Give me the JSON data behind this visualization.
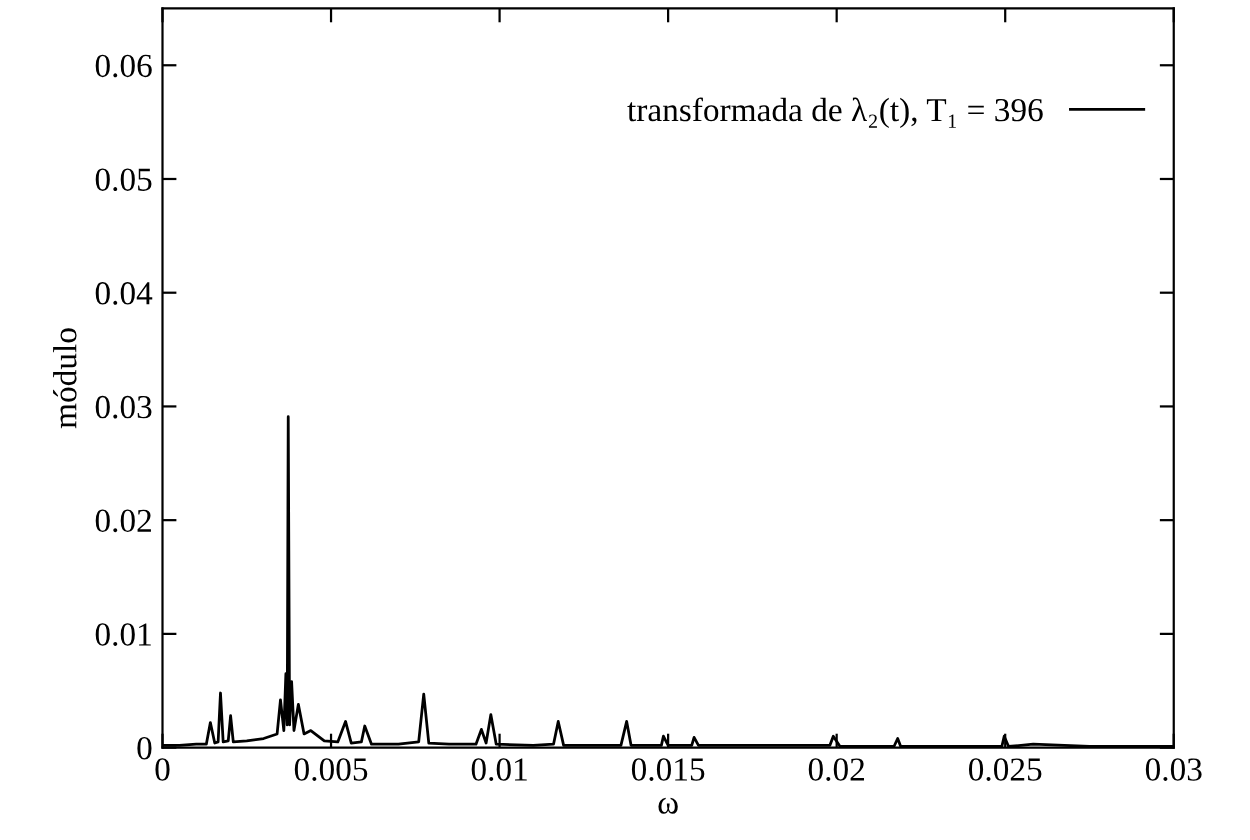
{
  "chart_data": {
    "type": "line",
    "xlabel": "ω",
    "ylabel": "módulo",
    "xlim": [
      0,
      0.03
    ],
    "xticks": [
      0,
      0.005,
      0.01,
      0.015,
      0.02,
      0.025,
      0.03
    ],
    "ylim": [
      0,
      0.065
    ],
    "yticks": [
      0,
      0.01,
      0.02,
      0.03,
      0.04,
      0.05,
      0.06
    ],
    "grid": false,
    "legend": "top right",
    "line_style": "solid",
    "marker": "none",
    "series": [
      {
        "name": "transformada de λ₂(t), T₁ = 396",
        "color": "#000000",
        "x": [
          0,
          0.0005,
          0.001,
          0.0013,
          0.00142,
          0.00155,
          0.00165,
          0.00172,
          0.0018,
          0.00195,
          0.00202,
          0.0021,
          0.0025,
          0.003,
          0.0034,
          0.0035,
          0.0036,
          0.00366,
          0.0037,
          0.00373,
          0.00377,
          0.00383,
          0.0039,
          0.00403,
          0.0042,
          0.0044,
          0.0048,
          0.0052,
          0.00543,
          0.0056,
          0.0059,
          0.006,
          0.0062,
          0.007,
          0.0076,
          0.00775,
          0.0079,
          0.0085,
          0.0093,
          0.00946,
          0.0096,
          0.00974,
          0.0099,
          0.011,
          0.0116,
          0.01174,
          0.0119,
          0.0136,
          0.01377,
          0.0139,
          0.0148,
          0.01486,
          0.015,
          0.0157,
          0.01577,
          0.0159,
          0.0175,
          0.0198,
          0.0199,
          0.0201,
          0.0217,
          0.02181,
          0.0219,
          0.0249,
          0.02497,
          0.0251,
          0.02583,
          0.0275,
          0.03
        ],
        "values": [
          0.0002,
          0.0002,
          0.0003,
          0.0003,
          0.0022,
          0.0004,
          0.0005,
          0.0048,
          0.0005,
          0.0006,
          0.0028,
          0.0005,
          0.0006,
          0.0008,
          0.0012,
          0.0042,
          0.0015,
          0.0065,
          0.002,
          0.0291,
          0.002,
          0.0058,
          0.0015,
          0.0038,
          0.0012,
          0.0015,
          0.0006,
          0.0005,
          0.0023,
          0.0004,
          0.0005,
          0.0019,
          0.0003,
          0.0003,
          0.0005,
          0.0047,
          0.0004,
          0.0003,
          0.0003,
          0.0016,
          0.0004,
          0.0029,
          0.0003,
          0.0002,
          0.0003,
          0.0023,
          0.0002,
          0.0002,
          0.0023,
          0.0002,
          0.0002,
          0.001,
          0.0002,
          0.0002,
          0.0009,
          0.0002,
          0.0002,
          0.0002,
          0.001,
          0.0001,
          0.0001,
          0.0008,
          0.0001,
          0.0001,
          0.001,
          0.0001,
          0.0003,
          0.0001,
          0.0001
        ]
      }
    ]
  }
}
